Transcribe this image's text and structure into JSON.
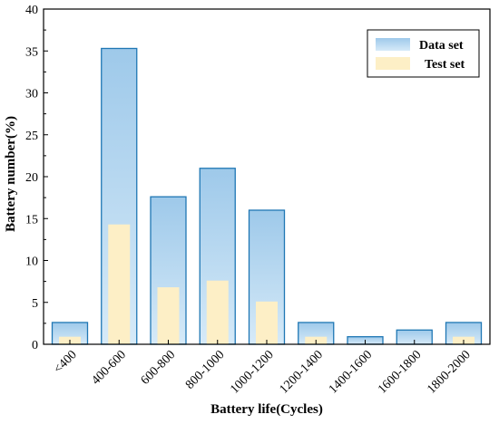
{
  "chart_data": {
    "type": "bar",
    "title": "",
    "xlabel": "Battery life(Cycles)",
    "ylabel": "Battery number(%)",
    "ylim": [
      0,
      40
    ],
    "yticks": [
      0,
      5,
      10,
      15,
      20,
      25,
      30,
      35,
      40
    ],
    "categories": [
      "<400",
      "400-600",
      "600-800",
      "800-1000",
      "1000-1200",
      "1200-1400",
      "1400-1600",
      "1600-1800",
      "1800-2000"
    ],
    "series": [
      {
        "name": "Data set",
        "values": [
          2.6,
          35.3,
          17.6,
          21.0,
          16.0,
          2.6,
          0.9,
          1.7,
          2.6
        ]
      },
      {
        "name": "Test set",
        "values": [
          0.9,
          14.3,
          6.8,
          7.6,
          5.1,
          0.9,
          0.0,
          0.0,
          0.9
        ]
      }
    ],
    "legend": {
      "position": "top-right",
      "entries": [
        "Data set",
        "Test set"
      ]
    },
    "grid": false,
    "colors": {
      "data_set_top": "#9ec9ea",
      "data_set_bottom": "#d6eaf8",
      "data_set_edge": "#1f77b4",
      "test_set_fill": "#fdefc6",
      "axis": "#000000"
    }
  }
}
